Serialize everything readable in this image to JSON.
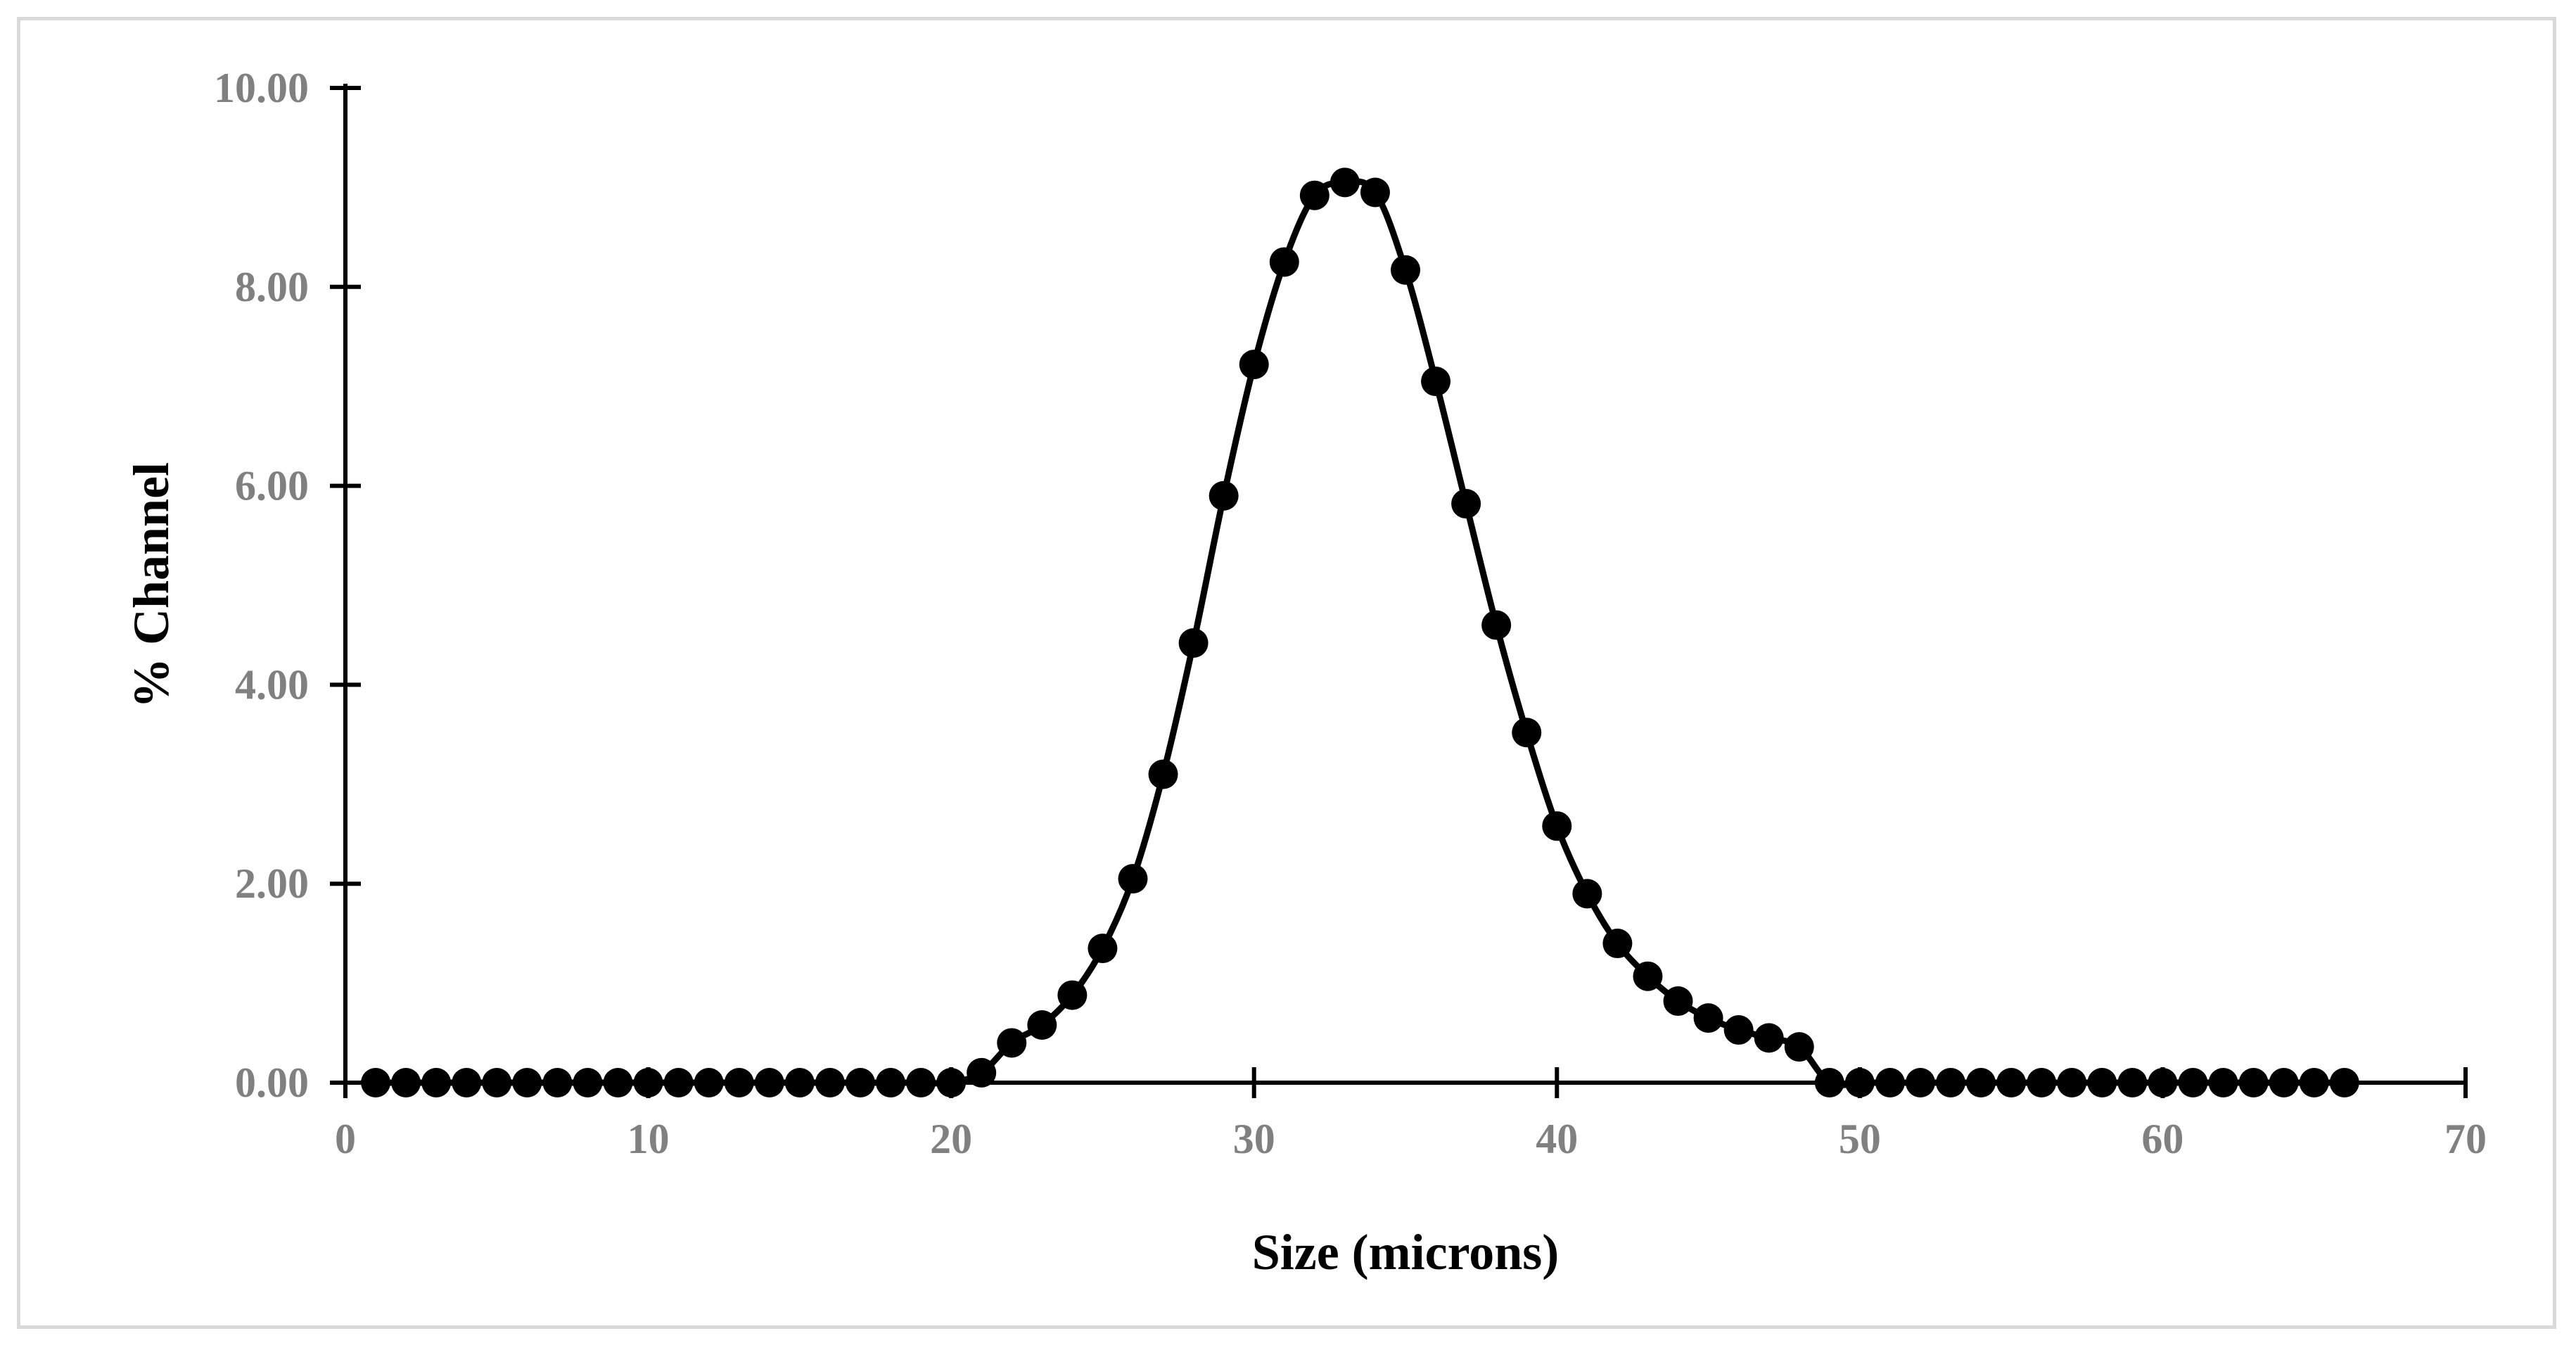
{
  "chart_data": {
    "type": "scatter",
    "title": "",
    "xlabel": "Size (microns)",
    "ylabel": "% Channel",
    "xlim": [
      0,
      70
    ],
    "ylim": [
      0,
      10
    ],
    "x_ticks": [
      "0",
      "10",
      "20",
      "30",
      "40",
      "50",
      "60",
      "70"
    ],
    "y_ticks": [
      "0.00",
      "2.00",
      "4.00",
      "6.00",
      "8.00",
      "10.00"
    ],
    "grid": false,
    "legend": "none",
    "marker": "filled-circle",
    "line": "smooth",
    "series": [
      {
        "x": [
          1,
          2,
          3,
          4,
          5,
          6,
          7,
          8,
          9,
          10,
          11,
          12,
          13,
          14,
          15,
          16,
          17,
          18,
          19,
          20,
          21,
          22,
          23,
          24,
          25,
          26,
          27,
          28,
          29,
          30,
          31,
          32,
          33,
          34,
          35,
          36,
          37,
          38,
          39,
          40,
          41,
          42,
          43,
          44,
          45,
          46,
          47,
          48,
          49,
          50,
          51,
          52,
          53,
          54,
          55,
          56,
          57,
          58,
          59,
          60,
          61,
          62,
          63,
          64,
          65,
          66
        ],
        "y": [
          0,
          0,
          0,
          0,
          0,
          0,
          0,
          0,
          0,
          0,
          0,
          0,
          0,
          0,
          0,
          0,
          0,
          0,
          0,
          0,
          0.1,
          0.4,
          0.58,
          0.88,
          1.35,
          2.05,
          3.1,
          4.42,
          5.9,
          7.22,
          8.25,
          8.92,
          9.05,
          8.95,
          8.17,
          7.05,
          5.82,
          4.6,
          3.52,
          2.58,
          1.9,
          1.4,
          1.07,
          0.82,
          0.65,
          0.53,
          0.45,
          0.36,
          0,
          0,
          0,
          0,
          0,
          0,
          0,
          0,
          0,
          0,
          0,
          0,
          0,
          0,
          0,
          0,
          0,
          0
        ],
        "color": "#000000"
      }
    ]
  }
}
